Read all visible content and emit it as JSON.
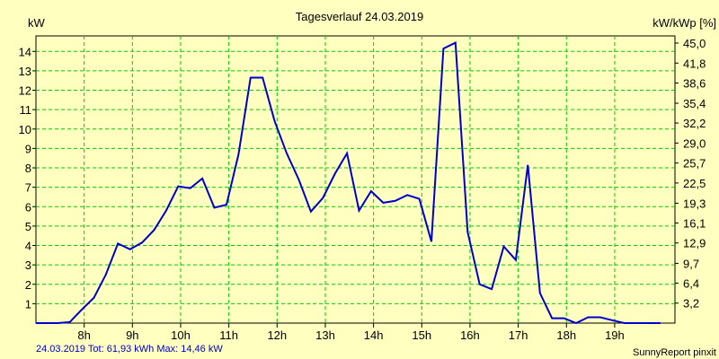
{
  "chart_data": {
    "type": "line",
    "title": "Tagesverlauf 24.03.2019",
    "ylabel_left": "kW",
    "ylabel_right": "kW/kWp [%]",
    "xlim": [
      7.0,
      20.25
    ],
    "ylim": [
      0,
      14.8
    ],
    "x_ticks": [
      8,
      9,
      10,
      11,
      12,
      13,
      14,
      15,
      16,
      17,
      18,
      19
    ],
    "x_tick_labels": [
      "8h",
      "9h",
      "10h",
      "11h",
      "12h",
      "13h",
      "14h",
      "15h",
      "16h",
      "17h",
      "18h",
      "19h"
    ],
    "y_ticks_left": [
      1,
      2,
      3,
      4,
      5,
      6,
      7,
      8,
      9,
      10,
      11,
      12,
      13,
      14
    ],
    "y_ticks_left_labels": [
      "1",
      "2",
      "3",
      "4",
      "5",
      "6",
      "7",
      "8",
      "9",
      "10",
      "11",
      "12",
      "13",
      "14"
    ],
    "y_ticks_right_kw": [
      1.03,
      2.06,
      3.08,
      4.13,
      5.16,
      6.18,
      7.22,
      8.25,
      9.28,
      10.31,
      11.33,
      12.37,
      13.4,
      14.43
    ],
    "y_ticks_right_labels": [
      "3,2",
      "6,4",
      "9,7",
      "12,9",
      "16,1",
      "19,3",
      "22,5",
      "25,7",
      "29,0",
      "32,2",
      "35,4",
      "38,6",
      "41,8",
      "45,0"
    ],
    "grid": true,
    "line_color": "#0000cc",
    "grid_color": "#00cc00",
    "series": [
      {
        "x": [
          7.0,
          7.45,
          7.7,
          7.95,
          8.2,
          8.45,
          8.7,
          8.95,
          9.2,
          9.45,
          9.7,
          9.95,
          10.2,
          10.45,
          10.7,
          10.95,
          11.2,
          11.45,
          11.7,
          11.95,
          12.2,
          12.45,
          12.7,
          12.95,
          13.2,
          13.45,
          13.7,
          13.95,
          14.2,
          14.45,
          14.7,
          14.95,
          15.2,
          15.45,
          15.7,
          15.95,
          16.2,
          16.45,
          16.7,
          16.95,
          17.2,
          17.45,
          17.7,
          17.95,
          18.2,
          18.45,
          18.7,
          18.95,
          19.2,
          19.45,
          19.7,
          19.95
        ],
        "values": [
          0.0,
          0.0,
          0.05,
          0.7,
          1.3,
          2.5,
          4.1,
          3.8,
          4.15,
          4.8,
          5.8,
          7.05,
          6.95,
          7.45,
          5.95,
          6.1,
          8.7,
          12.65,
          12.65,
          10.4,
          8.75,
          7.4,
          5.75,
          6.45,
          7.7,
          8.75,
          5.8,
          6.8,
          6.2,
          6.3,
          6.6,
          6.4,
          4.2,
          14.15,
          14.45,
          4.7,
          2.0,
          1.75,
          3.95,
          3.25,
          8.15,
          1.55,
          0.25,
          0.25,
          0.0,
          0.3,
          0.3,
          0.15,
          0.0,
          0.0,
          0.0,
          0.0
        ]
      }
    ]
  },
  "footer": {
    "left": "24.03.2019 Tot: 61,93 kWh Max: 14,46 kW",
    "right": "SunnyReport pinxit"
  }
}
